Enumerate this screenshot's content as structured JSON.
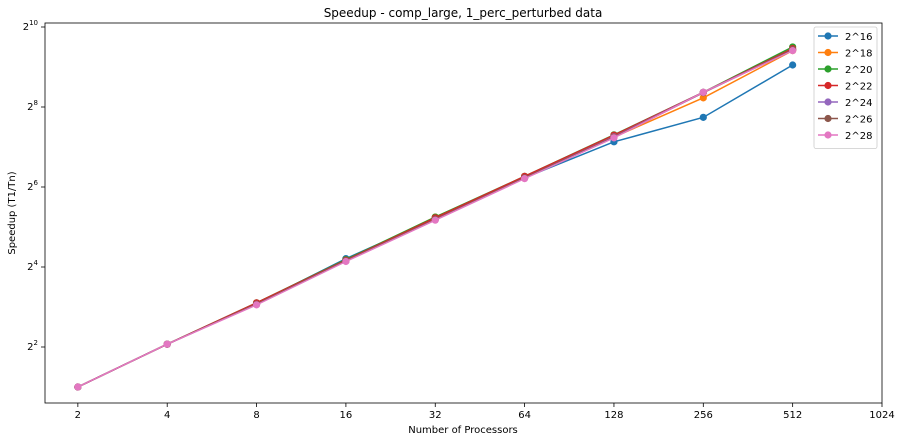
{
  "chart_data": {
    "type": "line",
    "title": "Speedup - comp_large, 1_perc_perturbed data",
    "xlabel": "Number of Processors",
    "ylabel": "Speedup (T1/Tn)",
    "x_scale": "log2",
    "y_scale": "log2",
    "xlim": [
      1.55,
      1024
    ],
    "ylim_log2": [
      0.6,
      10.1
    ],
    "x": [
      2,
      4,
      8,
      16,
      32,
      64,
      128,
      256,
      512
    ],
    "x_ticks": [
      2,
      4,
      8,
      16,
      32,
      64,
      128,
      256,
      512,
      1024
    ],
    "x_tick_labels": [
      "2",
      "4",
      "8",
      "16",
      "32",
      "64",
      "128",
      "256",
      "512",
      "1024"
    ],
    "y_ticks": [
      {
        "base": "2",
        "exp": "2",
        "value": 4
      },
      {
        "base": "2",
        "exp": "4",
        "value": 16
      },
      {
        "base": "2",
        "exp": "6",
        "value": 64
      },
      {
        "base": "2",
        "exp": "8",
        "value": 256
      },
      {
        "base": "2",
        "exp": "10",
        "value": 1024
      }
    ],
    "grid": false,
    "legend_position": "top-right",
    "series": [
      {
        "name": "2^16",
        "color": "#1f77b4",
        "values": [
          2.0,
          4.2,
          8.5,
          18.5,
          37.0,
          75.0,
          140.0,
          214.0,
          530.0
        ]
      },
      {
        "name": "2^18",
        "color": "#ff7f0e",
        "values": [
          2.0,
          4.2,
          8.5,
          18.0,
          38.0,
          76.0,
          152.0,
          300.0,
          680.0
        ]
      },
      {
        "name": "2^20",
        "color": "#2ca02c",
        "values": [
          2.0,
          4.2,
          8.6,
          18.2,
          38.0,
          77.0,
          158.0,
          330.0,
          725.0
        ]
      },
      {
        "name": "2^22",
        "color": "#d62728",
        "values": [
          2.0,
          4.2,
          8.6,
          18.0,
          37.5,
          77.0,
          157.0,
          330.0,
          705.0
        ]
      },
      {
        "name": "2^24",
        "color": "#9467bd",
        "values": [
          2.0,
          4.2,
          8.4,
          17.8,
          36.5,
          75.0,
          153.0,
          330.0,
          690.0
        ]
      },
      {
        "name": "2^26",
        "color": "#8c564b",
        "values": [
          2.0,
          4.2,
          8.4,
          17.8,
          36.5,
          75.0,
          152.0,
          328.0,
          690.0
        ]
      },
      {
        "name": "2^28",
        "color": "#e377c2",
        "values": [
          2.0,
          4.2,
          8.3,
          17.6,
          36.0,
          74.0,
          150.0,
          330.0,
          680.0
        ]
      }
    ]
  }
}
